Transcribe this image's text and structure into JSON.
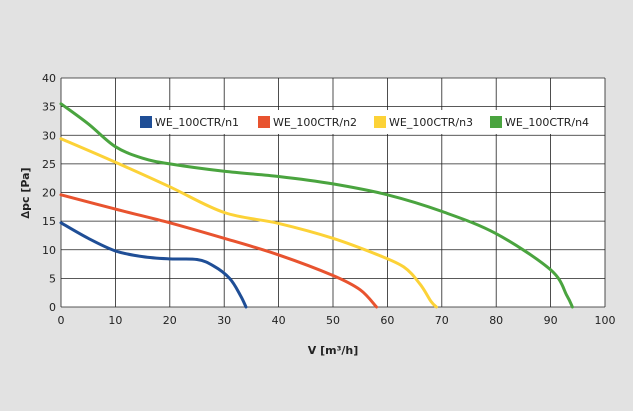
{
  "chart_data": {
    "type": "line",
    "title": "",
    "xlabel": "V [m³/h]",
    "ylabel": "∆pc [Pa]",
    "xlim": [
      0,
      100
    ],
    "ylim": [
      0,
      40
    ],
    "x_ticks": [
      0,
      10,
      20,
      30,
      40,
      50,
      60,
      70,
      80,
      90,
      100
    ],
    "y_ticks": [
      0,
      5,
      10,
      15,
      20,
      25,
      30,
      35,
      40
    ],
    "grid": true,
    "legend_position": "top",
    "series": [
      {
        "name": "WE_100CTR/n1",
        "color": "#1f4e96",
        "points": [
          [
            0,
            14.7
          ],
          [
            5,
            12
          ],
          [
            10,
            9.8
          ],
          [
            15,
            8.8
          ],
          [
            20,
            8.4
          ],
          [
            25,
            8.3
          ],
          [
            28,
            7.2
          ],
          [
            31,
            5
          ],
          [
            33,
            2
          ],
          [
            34,
            0
          ]
        ]
      },
      {
        "name": "WE_100CTR/n2",
        "color": "#e8532f",
        "points": [
          [
            0,
            19.6
          ],
          [
            10,
            17.1
          ],
          [
            20,
            14.7
          ],
          [
            30,
            12
          ],
          [
            40,
            9.1
          ],
          [
            50,
            5.5
          ],
          [
            55,
            3
          ],
          [
            58,
            0
          ]
        ]
      },
      {
        "name": "WE_100CTR/n3",
        "color": "#fcd237",
        "points": [
          [
            0,
            29.4
          ],
          [
            10,
            25.3
          ],
          [
            20,
            21
          ],
          [
            30,
            16.5
          ],
          [
            40,
            14.6
          ],
          [
            50,
            12
          ],
          [
            58,
            9.2
          ],
          [
            63,
            7
          ],
          [
            66,
            4
          ],
          [
            68,
            1
          ],
          [
            69,
            0
          ]
        ]
      },
      {
        "name": "WE_100CTR/n4",
        "color": "#4aa43f",
        "points": [
          [
            0,
            35.5
          ],
          [
            5,
            32
          ],
          [
            10,
            28
          ],
          [
            15,
            26
          ],
          [
            20,
            25
          ],
          [
            30,
            23.7
          ],
          [
            40,
            22.8
          ],
          [
            50,
            21.5
          ],
          [
            60,
            19.6
          ],
          [
            70,
            16.7
          ],
          [
            80,
            12.8
          ],
          [
            90,
            6.5
          ],
          [
            93,
            2
          ],
          [
            94,
            0
          ]
        ]
      }
    ]
  }
}
